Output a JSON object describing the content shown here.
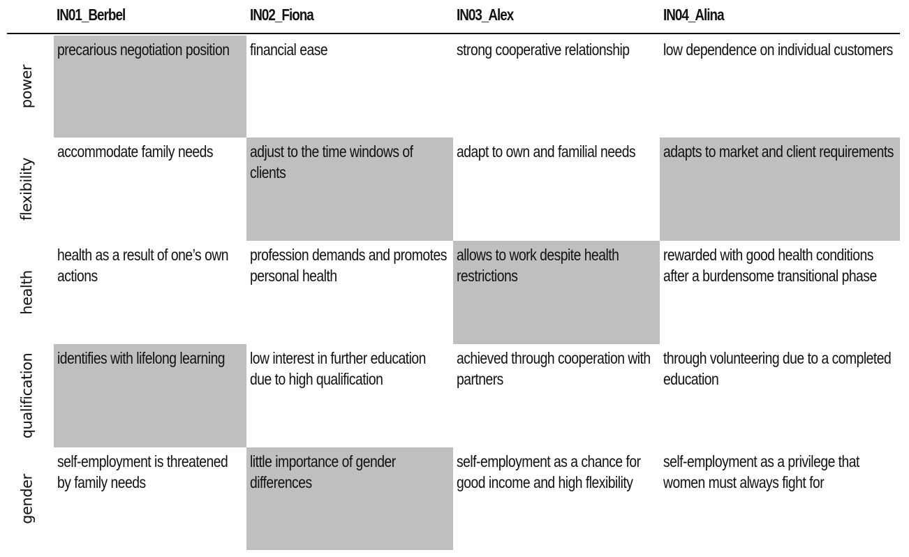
{
  "table": {
    "columns": [
      "IN01_Berbel",
      "IN02_Fiona",
      "IN03_Alex",
      "IN04_Alina"
    ],
    "rows": [
      {
        "label": "power",
        "cells": [
          {
            "text": "precarious negotiation position",
            "highlighted": true
          },
          {
            "text": "financial ease",
            "highlighted": false
          },
          {
            "text": "strong cooperative relationship",
            "highlighted": false
          },
          {
            "text": "low dependence on individual customers",
            "highlighted": false
          }
        ]
      },
      {
        "label": "flexibility",
        "cells": [
          {
            "text": "accommodate family needs",
            "highlighted": false
          },
          {
            "text": "adjust to the time windows of clients",
            "highlighted": true
          },
          {
            "text": "adapt to own and familial needs",
            "highlighted": false
          },
          {
            "text": "adapts to market and client requirements",
            "highlighted": true
          }
        ]
      },
      {
        "label": "health",
        "cells": [
          {
            "text": "health as a result of one’s own actions",
            "highlighted": false
          },
          {
            "text": "profession demands and promotes personal health",
            "highlighted": false
          },
          {
            "text": "allows to work despite health restrictions",
            "highlighted": true
          },
          {
            "text": "rewarded with good health conditions after a burdensome transitional phase",
            "highlighted": false
          }
        ]
      },
      {
        "label": "qualification",
        "cells": [
          {
            "text": "identifies with lifelong learning",
            "highlighted": true
          },
          {
            "text": "low interest in further education due to high qualification",
            "highlighted": false
          },
          {
            "text": "achieved through cooperation with partners",
            "highlighted": false
          },
          {
            "text": "through volunteering due to a completed education",
            "highlighted": false
          }
        ]
      },
      {
        "label": "gender",
        "cells": [
          {
            "text": "self-employment is threatened by family needs",
            "highlighted": false
          },
          {
            "text": "little importance of gender differences",
            "highlighted": true
          },
          {
            "text": "self-employment as a chance for good income and high flexibility",
            "highlighted": false
          },
          {
            "text": "self-employment as a privilege that women must always fight for",
            "highlighted": false
          }
        ]
      }
    ]
  },
  "colors": {
    "highlight": "#bfbfbf",
    "text": "#111111",
    "rule": "#111111"
  }
}
